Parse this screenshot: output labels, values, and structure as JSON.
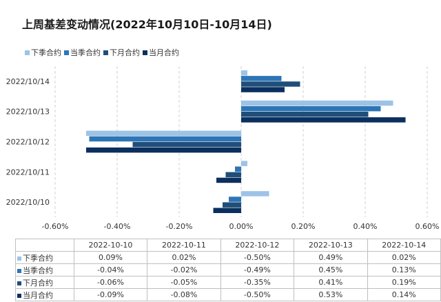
{
  "title": "上周基差变动情况(2022年10月10日-10月14日)",
  "legend": [
    "下季合约",
    "当季合约",
    "下月合约",
    "当月合约"
  ],
  "colors": {
    "下季合约": "#9dc3e6",
    "当季合约": "#2e75b6",
    "下月合约": "#1f4e79",
    "当月合约": "#0b2f5e"
  },
  "chart_data": {
    "type": "bar",
    "orientation": "horizontal",
    "categories": [
      "2022/10/14",
      "2022/10/13",
      "2022/10/12",
      "2022/10/11",
      "2022/10/10"
    ],
    "series": [
      {
        "name": "下季合约",
        "values": [
          0.02,
          0.49,
          -0.5,
          0.02,
          0.09
        ]
      },
      {
        "name": "当季合约",
        "values": [
          0.13,
          0.45,
          -0.49,
          -0.02,
          -0.04
        ]
      },
      {
        "name": "下月合约",
        "values": [
          0.19,
          0.41,
          -0.35,
          -0.05,
          -0.06
        ]
      },
      {
        "name": "当月合约",
        "values": [
          0.14,
          0.53,
          -0.5,
          -0.08,
          -0.09
        ]
      }
    ],
    "xlim": [
      -0.6,
      0.6
    ],
    "xticks": [
      "-0.60%",
      "-0.40%",
      "-0.20%",
      "0.00%",
      "0.20%",
      "0.40%",
      "0.60%"
    ],
    "unit": "%",
    "grid": true
  },
  "table": {
    "headers": [
      "2022-10-10",
      "2022-10-11",
      "2022-10-12",
      "2022-10-13",
      "2022-10-14"
    ],
    "rows": [
      {
        "label": "下季合约",
        "values": [
          "0.09%",
          "0.02%",
          "-0.50%",
          "0.49%",
          "0.02%"
        ]
      },
      {
        "label": "当季合约",
        "values": [
          "-0.04%",
          "-0.02%",
          "-0.49%",
          "0.45%",
          "0.13%"
        ]
      },
      {
        "label": "下月合约",
        "values": [
          "-0.06%",
          "-0.05%",
          "-0.35%",
          "0.41%",
          "0.19%"
        ]
      },
      {
        "label": "当月合约",
        "values": [
          "-0.09%",
          "-0.08%",
          "-0.50%",
          "0.53%",
          "0.14%"
        ]
      }
    ]
  }
}
